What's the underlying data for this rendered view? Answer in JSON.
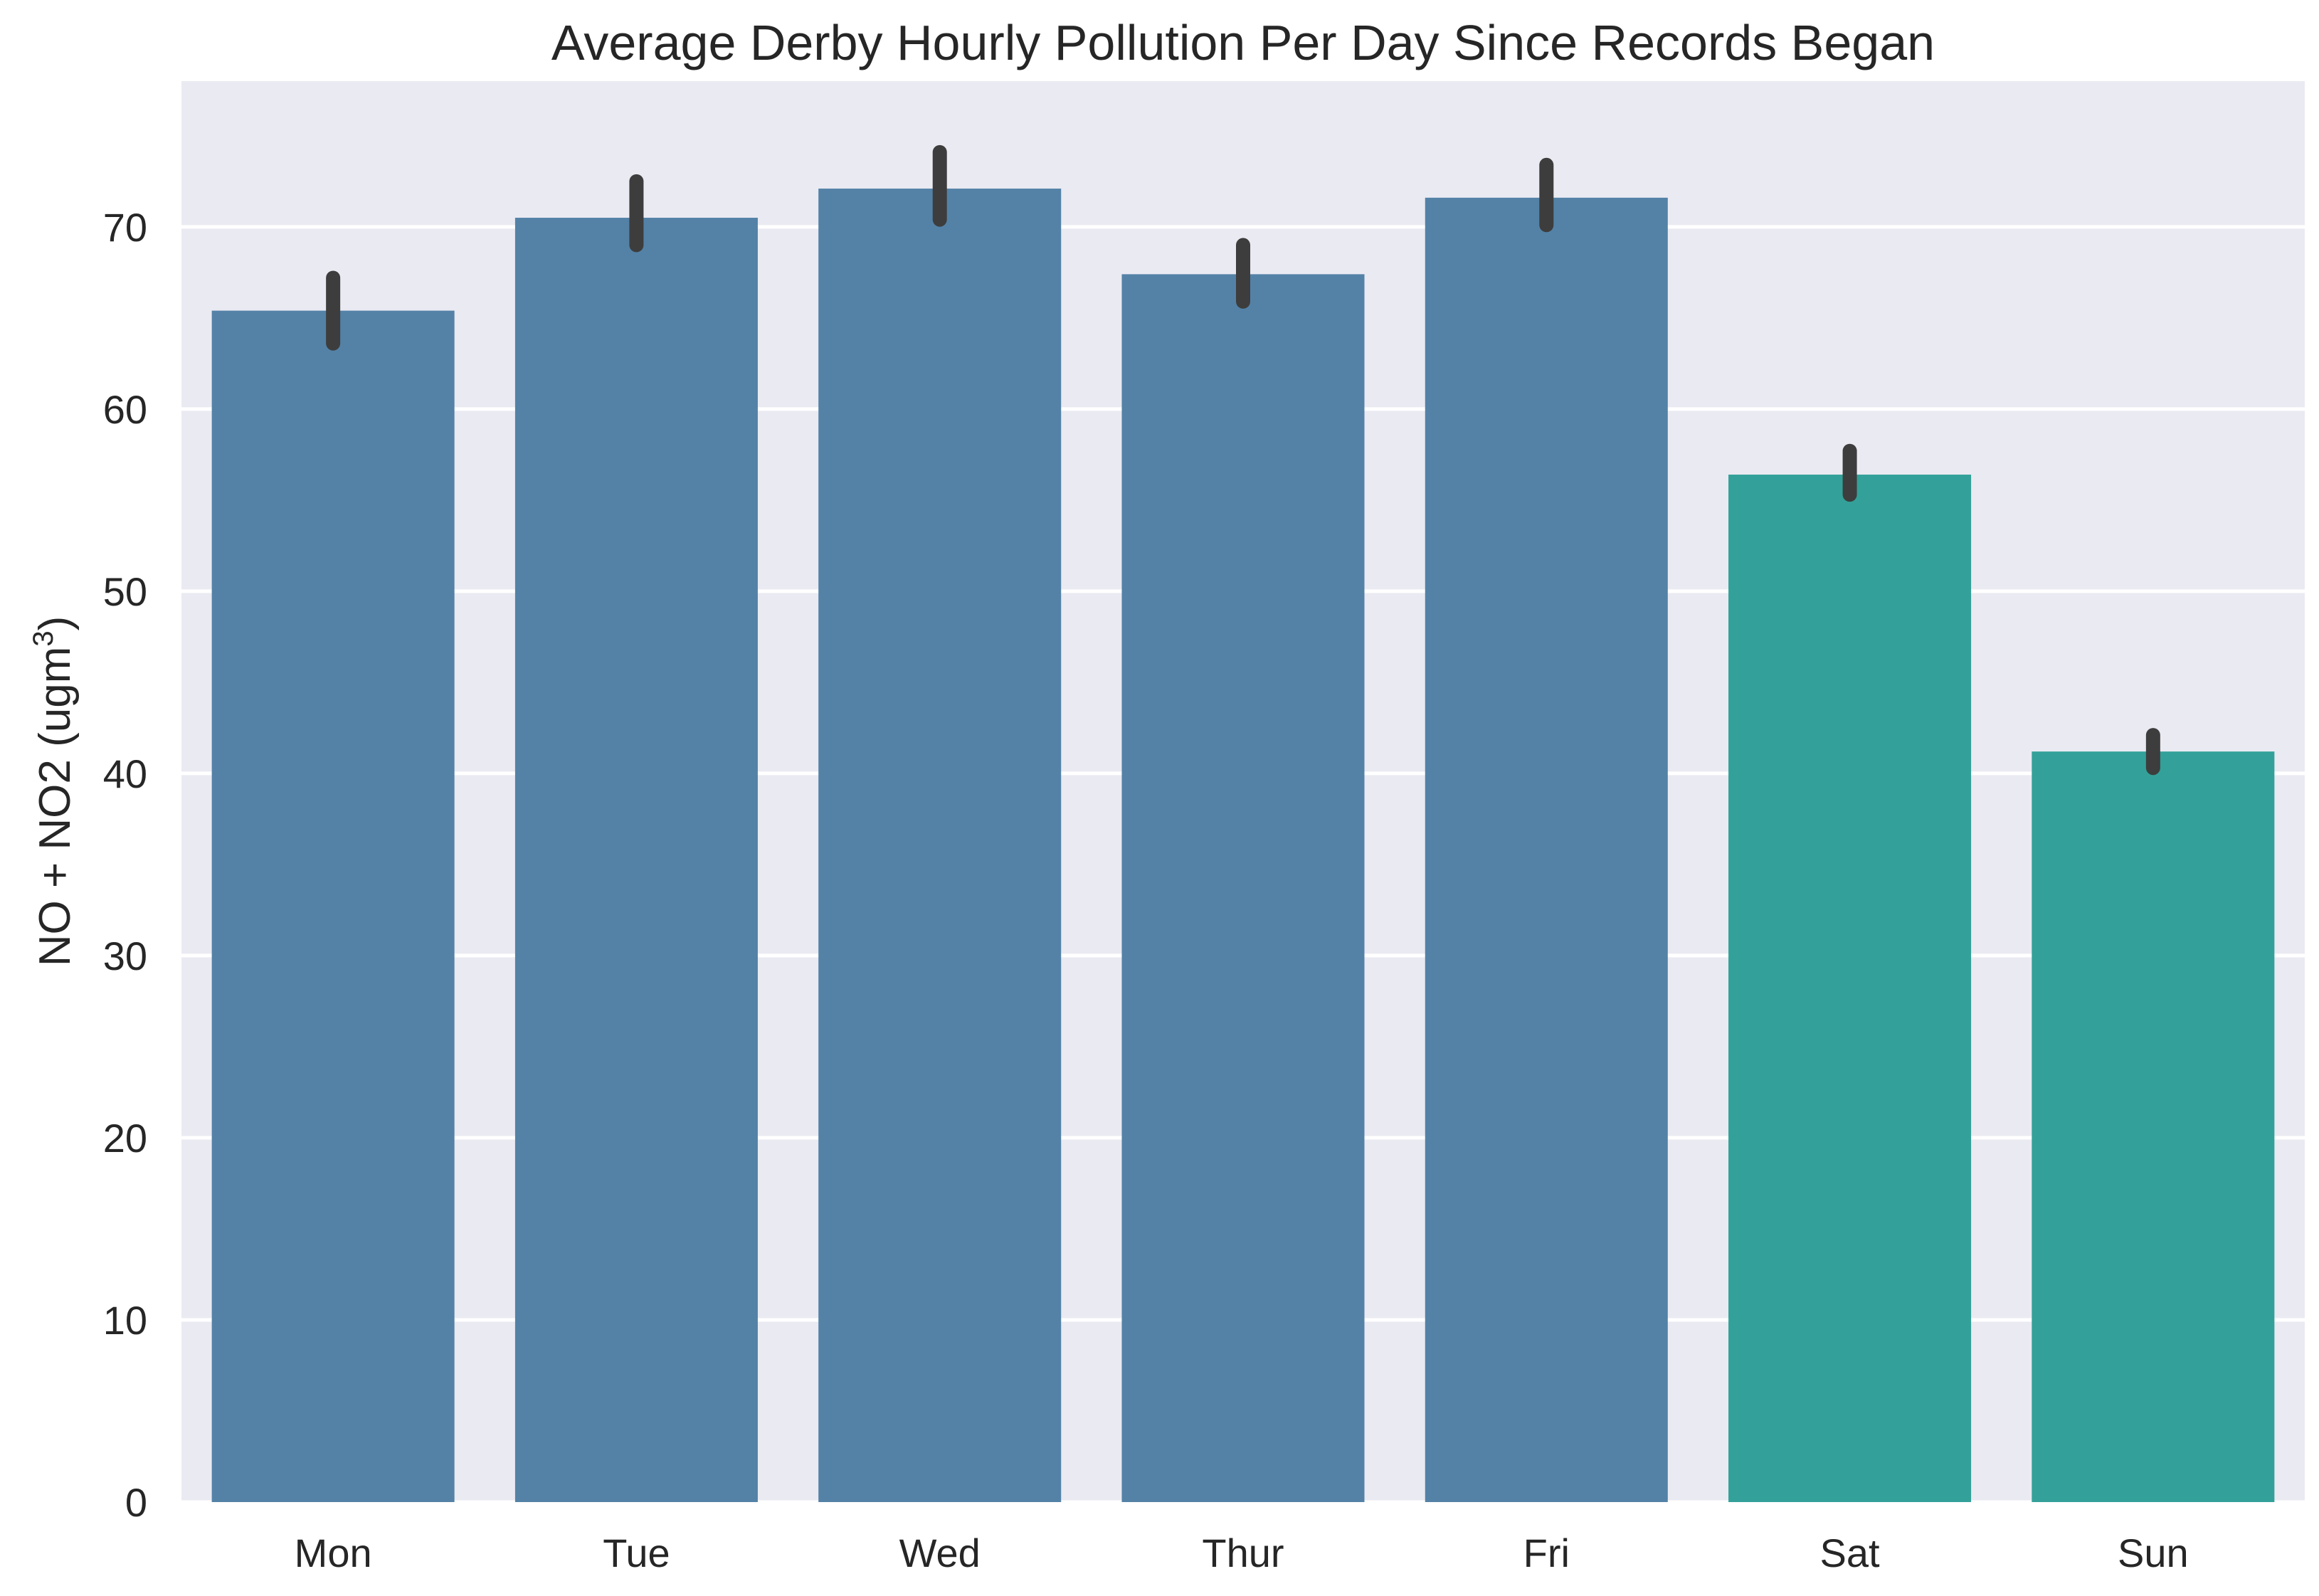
{
  "chart_data": {
    "type": "bar",
    "title": "Average Derby Hourly Pollution Per Day Since Records Began",
    "xlabel": "",
    "ylabel": "NO + NO2 (ugm",
    "ylabel_superscript": "3",
    "ylabel_suffix": ")",
    "categories": [
      "Mon",
      "Tue",
      "Wed",
      "Thur",
      "Fri",
      "Sat",
      "Sun"
    ],
    "values": [
      65.4,
      70.5,
      72.1,
      67.4,
      71.6,
      56.4,
      41.2
    ],
    "error_low": [
      63.6,
      69.0,
      70.4,
      65.9,
      70.1,
      55.3,
      40.3
    ],
    "error_high": [
      67.2,
      72.5,
      74.1,
      69.0,
      73.4,
      57.7,
      42.1
    ],
    "bar_colors": [
      "#5482a7",
      "#5482a7",
      "#5482a7",
      "#5482a7",
      "#5482a7",
      "#33a199",
      "#33a199"
    ],
    "error_color": "#3d3d3d",
    "background_color": "#eaeaf2",
    "grid": true,
    "grid_color": "#ffffff",
    "ylim": [
      0,
      78
    ],
    "yticks": [
      "0",
      "10",
      "20",
      "30",
      "40",
      "50",
      "60",
      "70"
    ]
  }
}
